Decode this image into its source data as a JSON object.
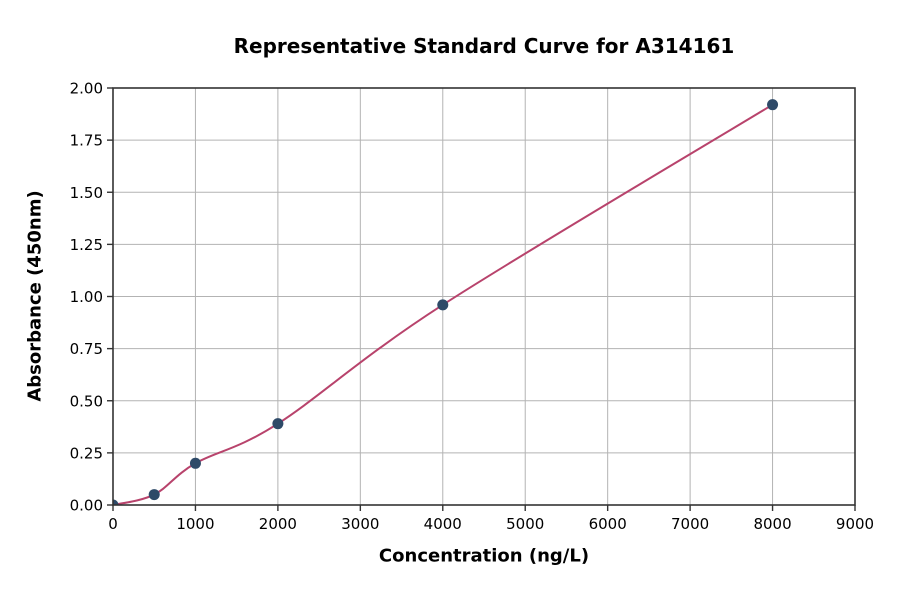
{
  "page": {
    "background": "#ffffff"
  },
  "chart_data": {
    "type": "scatter",
    "title": "Representative Standard Curve for A314161",
    "xlabel": "Concentration (ng/L)",
    "ylabel": "Absorbance (450nm)",
    "xlim": [
      0,
      9000
    ],
    "ylim": [
      0,
      2.0
    ],
    "x_ticks": [
      0,
      1000,
      2000,
      3000,
      4000,
      5000,
      6000,
      7000,
      8000,
      9000
    ],
    "y_ticks": [
      0.0,
      0.25,
      0.5,
      0.75,
      1.0,
      1.25,
      1.5,
      1.75,
      2.0
    ],
    "y_tick_decimals": 2,
    "grid": true,
    "legend_position": "none",
    "series": [
      {
        "name": "standard-points",
        "type": "scatter",
        "x": [
          0,
          500,
          1000,
          2000,
          4000,
          8000
        ],
        "y": [
          0.0,
          0.05,
          0.2,
          0.39,
          0.96,
          1.92
        ]
      },
      {
        "name": "fit-curve",
        "type": "line",
        "smooth": true,
        "x": [
          0,
          500,
          1000,
          2000,
          4000,
          8000
        ],
        "y": [
          0.0,
          0.05,
          0.2,
          0.39,
          0.96,
          1.92
        ]
      }
    ],
    "styles": {
      "point_color": "#2e4a68",
      "line_color": "#b8436c",
      "grid_color": "#b3b3b3",
      "axis_color": "#333333",
      "text_color": "#000000",
      "tick_font_size": 15,
      "point_radius": 5.5,
      "line_width": 2
    }
  }
}
